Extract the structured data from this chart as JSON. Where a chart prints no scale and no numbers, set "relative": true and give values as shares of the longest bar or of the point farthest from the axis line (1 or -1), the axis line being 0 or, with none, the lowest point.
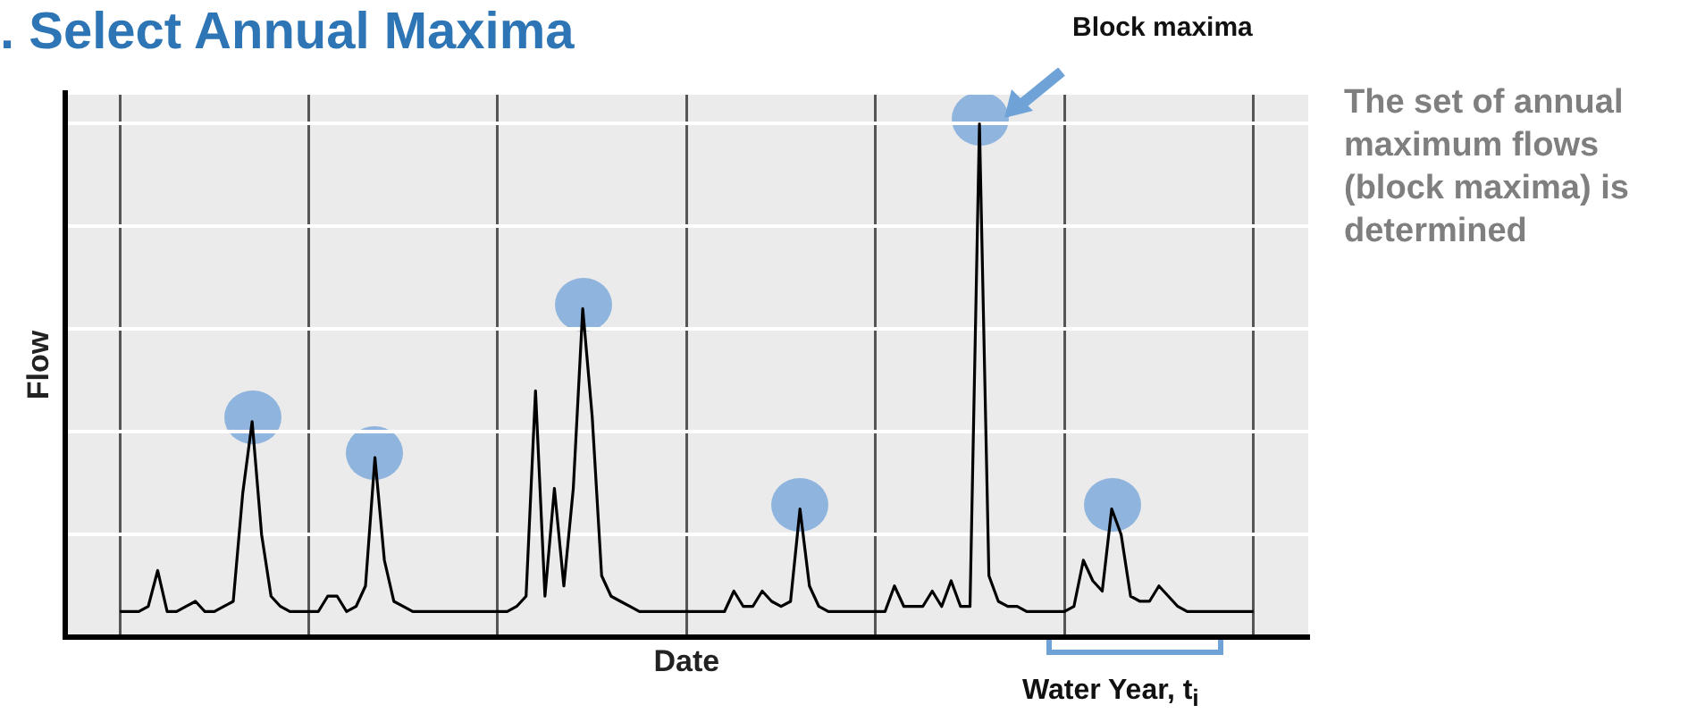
{
  "chart_data": {
    "type": "line",
    "title": ". Select Annual Maxima",
    "xlabel": "Date",
    "ylabel": "Flow",
    "relative": true,
    "grid": true,
    "legend": false,
    "marker": "none",
    "line_style": "solid",
    "categories": [
      null,
      null,
      null,
      null,
      null,
      null,
      null,
      null,
      null,
      null,
      null,
      null,
      null,
      null,
      null,
      null,
      null,
      null,
      null,
      null,
      null,
      null,
      null,
      null,
      null,
      null,
      null,
      null,
      null,
      null,
      null,
      null,
      null,
      null,
      null,
      null,
      null,
      null,
      null,
      null,
      null,
      null,
      null,
      null,
      null,
      null,
      null,
      null,
      null,
      null,
      null,
      null,
      null,
      null,
      null,
      null,
      null,
      null,
      null,
      null,
      null,
      null,
      null,
      null,
      null,
      null,
      null,
      null,
      null,
      null,
      null,
      null,
      null,
      null,
      null,
      null,
      null,
      null,
      null,
      null,
      null,
      null,
      null,
      null,
      null,
      null,
      null,
      null,
      null,
      null,
      null,
      null,
      null,
      null,
      null,
      null,
      null,
      null,
      null,
      null,
      null,
      null,
      null,
      null,
      null,
      null,
      null,
      null,
      null,
      null,
      null,
      null,
      null,
      null,
      null,
      null,
      null,
      null,
      null,
      null,
      null
    ],
    "series": [
      {
        "color": "#000000",
        "values": [
          0.05,
          0.05,
          0.05,
          0.06,
          0.13,
          0.05,
          0.05,
          0.06,
          0.07,
          0.05,
          0.05,
          0.06,
          0.07,
          0.28,
          0.42,
          0.2,
          0.08,
          0.06,
          0.05,
          0.05,
          0.05,
          0.05,
          0.08,
          0.08,
          0.05,
          0.06,
          0.1,
          0.35,
          0.15,
          0.07,
          0.06,
          0.05,
          0.05,
          0.05,
          0.05,
          0.05,
          0.05,
          0.05,
          0.05,
          0.05,
          0.05,
          0.05,
          0.06,
          0.08,
          0.48,
          0.08,
          0.29,
          0.1,
          0.29,
          0.64,
          0.43,
          0.12,
          0.08,
          0.07,
          0.06,
          0.05,
          0.05,
          0.05,
          0.05,
          0.05,
          0.05,
          0.05,
          0.05,
          0.05,
          0.05,
          0.09,
          0.06,
          0.06,
          0.09,
          0.07,
          0.06,
          0.07,
          0.25,
          0.1,
          0.06,
          0.05,
          0.05,
          0.05,
          0.05,
          0.05,
          0.05,
          0.05,
          0.1,
          0.06,
          0.06,
          0.06,
          0.09,
          0.06,
          0.11,
          0.06,
          0.06,
          1.0,
          0.12,
          0.07,
          0.06,
          0.06,
          0.05,
          0.05,
          0.05,
          0.05,
          0.05,
          0.06,
          0.15,
          0.11,
          0.09,
          0.25,
          0.2,
          0.08,
          0.07,
          0.07,
          0.1,
          0.08,
          0.06,
          0.05,
          0.05,
          0.05,
          0.05,
          0.05,
          0.05,
          0.05,
          0.05
        ]
      }
    ],
    "annotations": [
      "Block maxima",
      "Water Year, t$_{i}$",
      "The set of annual maximum flows  (block maxima) is determined"
    ]
  }
}
